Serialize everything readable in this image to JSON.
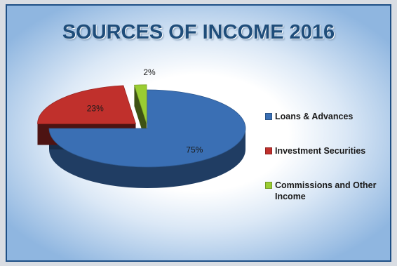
{
  "chart_data": {
    "type": "pie",
    "title": "SOURCES OF INCOME 2016",
    "slices": [
      {
        "name": "Loans & Advances",
        "value": 75,
        "label": "75%",
        "color": "#3a6fb4"
      },
      {
        "name": "Investment Securities",
        "value": 23,
        "label": "23%",
        "color": "#c0302c"
      },
      {
        "name": "Commissions and Other Income",
        "value": 2,
        "label": "2%",
        "color": "#9acd32"
      }
    ],
    "style": "3d-exploded",
    "legend_position": "right"
  }
}
